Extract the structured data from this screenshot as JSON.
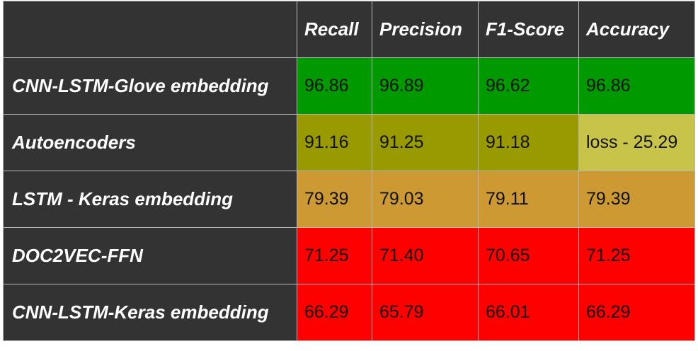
{
  "chart_data": {
    "type": "table",
    "columns": [
      "",
      "Recall",
      "Precision",
      "F1-Score",
      "Accuracy"
    ],
    "rows": [
      {
        "model": "CNN-LSTM-Glove embedding",
        "values": [
          "96.86",
          "96.89",
          "96.62",
          "96.86"
        ],
        "color": "#009900"
      },
      {
        "model": "Autoencoders",
        "values": [
          "91.16",
          "91.25",
          "91.18",
          "loss - 25.29"
        ],
        "color": "#999900",
        "last_cell_color": "#c8c44a"
      },
      {
        "model": "LSTM - Keras embedding",
        "values": [
          "79.39",
          "79.03",
          "79.11",
          "79.39"
        ],
        "color": "#cc9933"
      },
      {
        "model": "DOC2VEC-FFN",
        "values": [
          "71.25",
          "71.40",
          "70.65",
          "71.25"
        ],
        "color": "#ff0000"
      },
      {
        "model": "CNN-LSTM-Keras embedding",
        "values": [
          "66.29",
          "65.79",
          "66.01",
          "66.29"
        ],
        "color": "#ff0000"
      }
    ]
  }
}
